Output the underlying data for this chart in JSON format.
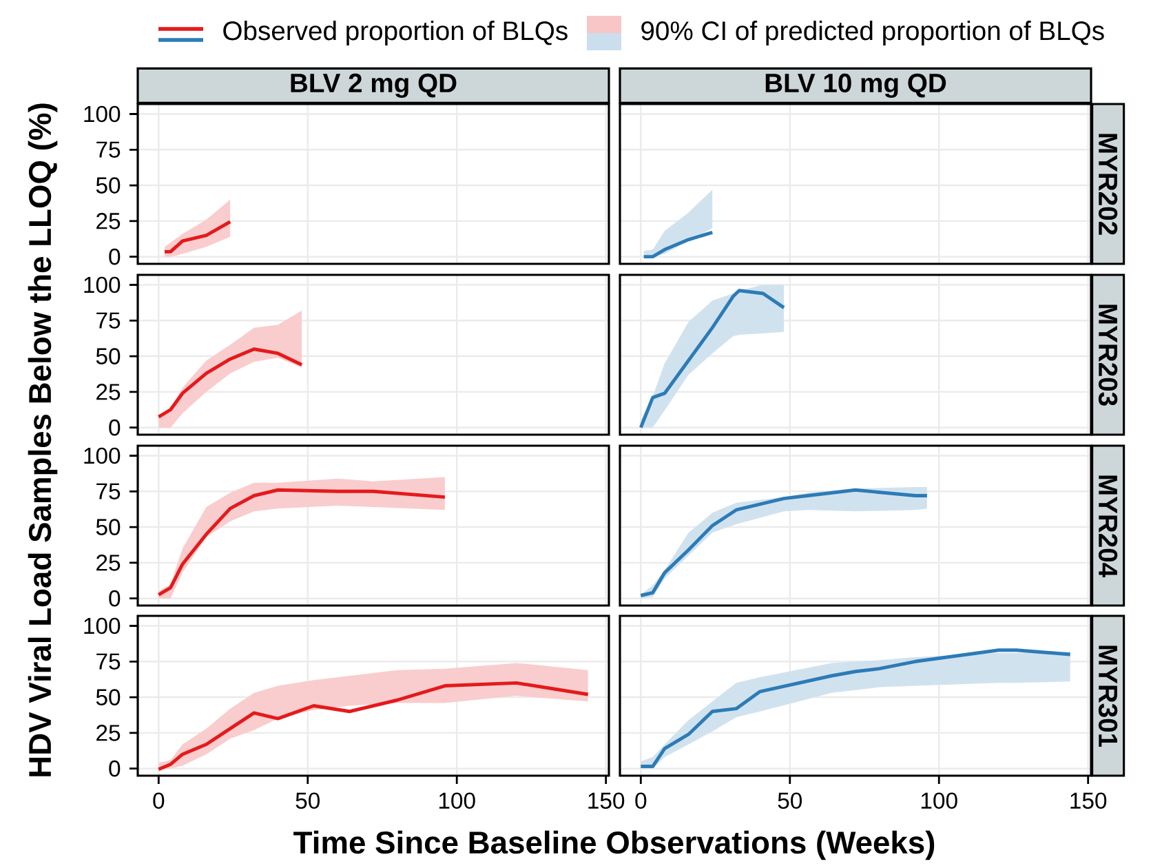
{
  "chart_data": [
    {
      "type": "line",
      "title": "BLV 2 mg QD",
      "ylabel": "HDV Viral Load Samples Below the LLOQ (%)",
      "legend": "top",
      "annotations": [
        "90% CI of predicted proportion of BLQs"
      ],
      "x": [
        2,
        4,
        8,
        16,
        24
      ],
      "xlim": [
        -7,
        151
      ],
      "ylim": [
        -5,
        107
      ],
      "xticks": [
        0,
        50,
        100,
        150
      ],
      "yticks": [
        0,
        25,
        50,
        75,
        100
      ],
      "grid": true,
      "tick_labels": "y",
      "series": [
        {
          "name": "Observed proportion of BLQs",
          "color": "#e41a1c",
          "values": [
            3.5,
            3.5,
            11,
            15,
            24.5
          ],
          "lower": [
            0,
            0,
            2,
            7,
            14
          ],
          "upper": [
            7,
            10,
            16,
            26,
            40
          ]
        }
      ]
    },
    {
      "type": "line",
      "title": "BLV 10 mg QD",
      "y2label": "MYR202",
      "x": [
        1,
        4,
        8,
        16,
        24
      ],
      "xlim": [
        -7,
        151
      ],
      "ylim": [
        -5,
        107
      ],
      "xticks": [
        0,
        50,
        100,
        150
      ],
      "yticks": [
        0,
        25,
        50,
        75,
        100
      ],
      "grid": true,
      "tick_labels": false,
      "series": [
        {
          "color": "#2c7bb6",
          "values": [
            0,
            0,
            5,
            12,
            17
          ],
          "lower": [
            0,
            0,
            2,
            11,
            20
          ],
          "upper": [
            4,
            5,
            18,
            31,
            47
          ]
        }
      ]
    },
    {
      "type": "line",
      "x": [
        0,
        4,
        8,
        16,
        24,
        32,
        40,
        48
      ],
      "xlim": [
        -7,
        151
      ],
      "ylim": [
        -5,
        107
      ],
      "xticks": [
        0,
        50,
        100,
        150
      ],
      "yticks": [
        0,
        25,
        50,
        75,
        100
      ],
      "grid": true,
      "tick_labels": "y",
      "series": [
        {
          "color": "#e41a1c",
          "values": [
            7.5,
            12.5,
            24,
            38,
            48,
            55,
            52,
            44
          ],
          "lower": [
            0,
            0,
            10,
            25,
            38,
            46,
            49,
            42
          ],
          "upper": [
            8,
            13,
            28,
            47,
            58,
            70,
            72,
            82
          ]
        }
      ]
    },
    {
      "type": "line",
      "y2label": "MYR203",
      "x": [
        0,
        4,
        8,
        16,
        24,
        31,
        33,
        41,
        48
      ],
      "xlim": [
        -7,
        151
      ],
      "ylim": [
        -5,
        107
      ],
      "xticks": [
        0,
        50,
        100,
        150
      ],
      "yticks": [
        0,
        25,
        50,
        75,
        100
      ],
      "grid": true,
      "tick_labels": false,
      "series": [
        {
          "color": "#2c7bb6",
          "values": [
            0,
            21,
            24,
            47,
            70,
            92,
            96,
            94,
            84
          ],
          "lower": [
            0,
            0,
            12,
            37,
            52,
            64,
            65,
            66,
            67
          ],
          "upper": [
            5,
            22,
            45,
            74,
            89,
            94,
            96,
            100,
            100
          ]
        }
      ]
    },
    {
      "type": "line",
      "x": [
        0,
        4,
        8,
        16,
        24,
        32,
        40,
        60,
        72,
        96
      ],
      "xlim": [
        -7,
        151
      ],
      "ylim": [
        -5,
        107
      ],
      "xticks": [
        0,
        50,
        100,
        150
      ],
      "yticks": [
        0,
        25,
        50,
        75,
        100
      ],
      "grid": true,
      "tick_labels": "y",
      "series": [
        {
          "color": "#e41a1c",
          "values": [
            2.5,
            7.5,
            24,
            45,
            63,
            72,
            76,
            75,
            75,
            71
          ],
          "lower": [
            0,
            0,
            18,
            43,
            54,
            61,
            63,
            65,
            64,
            62
          ],
          "upper": [
            5,
            10,
            35,
            64,
            74,
            81,
            81,
            84,
            82,
            85
          ]
        }
      ]
    },
    {
      "type": "line",
      "y2label": "MYR204",
      "x": [
        0,
        4,
        8,
        16,
        24,
        32,
        48,
        56,
        72,
        92,
        96
      ],
      "xlim": [
        -7,
        151
      ],
      "ylim": [
        -5,
        107
      ],
      "xticks": [
        0,
        50,
        100,
        150
      ],
      "yticks": [
        0,
        25,
        50,
        75,
        100
      ],
      "grid": true,
      "tick_labels": false,
      "series": [
        {
          "color": "#2c7bb6",
          "values": [
            2,
            4,
            18,
            34,
            51,
            62,
            70,
            72,
            76,
            72,
            72
          ],
          "lower": [
            0,
            1,
            14,
            30,
            46,
            52,
            61,
            62,
            61,
            62,
            63
          ],
          "upper": [
            3,
            9,
            20,
            46,
            60,
            67,
            71,
            74,
            77,
            78,
            78
          ]
        }
      ]
    },
    {
      "type": "line",
      "xlabel": "Time Since Baseline Observations (Weeks)",
      "x": [
        0,
        4,
        8,
        16,
        24,
        32,
        40,
        52,
        64,
        80,
        96,
        120,
        144
      ],
      "xlim": [
        -7,
        151
      ],
      "ylim": [
        -5,
        107
      ],
      "xticks": [
        0,
        50,
        100,
        150
      ],
      "yticks": [
        0,
        25,
        50,
        75,
        100
      ],
      "grid": true,
      "series": [
        {
          "color": "#e41a1c",
          "values": [
            -0.5,
            3,
            10,
            17,
            28,
            39,
            35,
            44,
            40,
            48,
            58,
            60,
            52
          ],
          "lower": [
            0,
            0,
            2,
            10,
            21,
            27,
            35,
            41,
            44,
            46,
            46,
            51,
            47
          ],
          "upper": [
            4,
            6,
            17,
            28,
            42,
            53,
            58,
            62,
            65,
            69,
            70,
            74,
            69
          ]
        }
      ]
    },
    {
      "type": "line",
      "y2label": "MYR301",
      "x": [
        0,
        4,
        8,
        16,
        24,
        32,
        40,
        64,
        72,
        80,
        92,
        120,
        126,
        144
      ],
      "xlim": [
        -7,
        151
      ],
      "ylim": [
        -5,
        107
      ],
      "xticks": [
        0,
        50,
        100,
        150
      ],
      "yticks": [
        0,
        25,
        50,
        75,
        100
      ],
      "grid": true,
      "tick_labels": "x",
      "series": [
        {
          "color": "#2c7bb6",
          "values": [
            1.5,
            1.5,
            14,
            24,
            40,
            42,
            54,
            65,
            68,
            70,
            75,
            83,
            83,
            80
          ],
          "lower": [
            0,
            0,
            8,
            17,
            26,
            36,
            40,
            53,
            55,
            57,
            58,
            60,
            60,
            61
          ],
          "upper": [
            5,
            8,
            17,
            34,
            47,
            60,
            64,
            74,
            75,
            76,
            78,
            81,
            81,
            82
          ]
        }
      ]
    }
  ]
}
